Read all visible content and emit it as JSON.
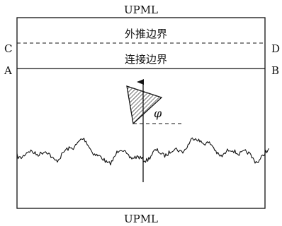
{
  "labels": {
    "top": "UPML",
    "bottom": "UPML",
    "extrapolation_boundary": "外推边界",
    "connection_boundary": "连接边界",
    "left_upper": "C",
    "right_upper": "D",
    "left_lower": "A",
    "right_lower": "B",
    "angle": "φ"
  },
  "colors": {
    "line": "#111111",
    "background": "#ffffff"
  },
  "icons": {
    "scatterer": "hatched-triangle",
    "incidence": "arrow-up"
  }
}
